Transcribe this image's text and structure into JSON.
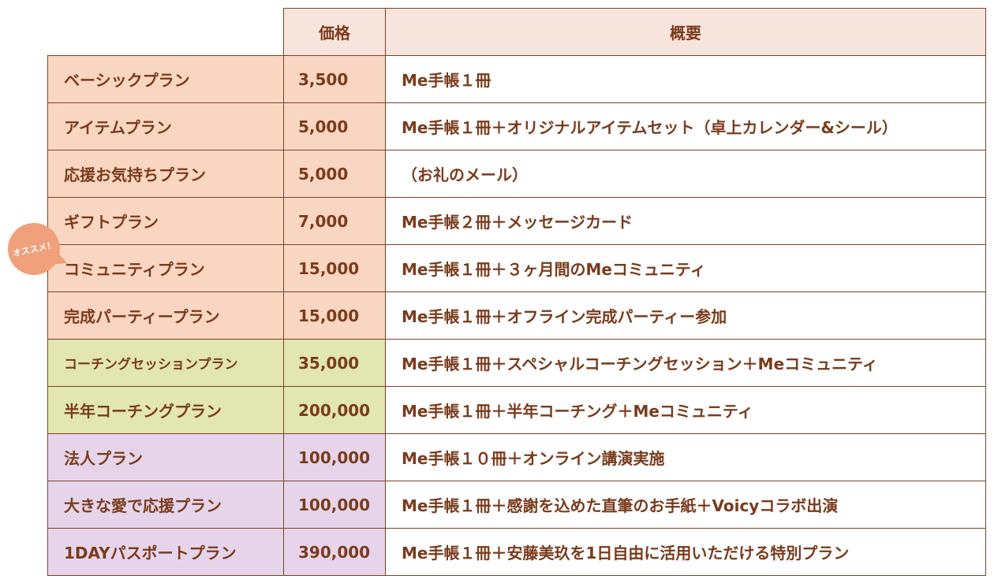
{
  "header": {
    "price": "価格",
    "summary": "概要"
  },
  "badge": "オススメ！",
  "colors": {
    "peach": "#f9d6c1",
    "green": "#e2e6b1",
    "purple": "#e6d5ea",
    "header": "#f7e4dc",
    "text": "#7a3b1c",
    "badge": "#f0a07a"
  },
  "plans": [
    {
      "name": "ベーシックプラン",
      "price": "3,500",
      "desc": "Me手帳１冊"
    },
    {
      "name": "アイテムプラン",
      "price": "5,000",
      "desc": "Me手帳１冊＋オリジナルアイテムセット（卓上カレンダー&シール）"
    },
    {
      "name": "応援お気持ちプラン",
      "price": "5,000",
      "desc": "（お礼のメール）"
    },
    {
      "name": "ギフトプラン",
      "price": "7,000",
      "desc": "Me手帳２冊＋メッセージカード"
    },
    {
      "name": "コミュニティプラン",
      "price": "15,000",
      "desc": "Me手帳１冊＋３ヶ月間のMeコミュニティ"
    },
    {
      "name": "完成パーティープラン",
      "price": "15,000",
      "desc": "Me手帳１冊＋オフライン完成パーティー参加"
    },
    {
      "name": "コーチングセッションプラン",
      "price": "35,000",
      "desc": "Me手帳１冊＋スペシャルコーチングセッション＋Meコミュニティ"
    },
    {
      "name": "半年コーチングプラン",
      "price": "200,000",
      "desc": "Me手帳１冊＋半年コーチング＋Meコミュニティ"
    },
    {
      "name": "法人プラン",
      "price": "100,000",
      "desc": "Me手帳１０冊＋オンライン講演実施"
    },
    {
      "name": "大きな愛で応援プラン",
      "price": "100,000",
      "desc": "Me手帳１冊＋感謝を込めた直筆のお手紙＋Voicyコラボ出演"
    },
    {
      "name": "1DAYパスポートプラン",
      "price": "390,000",
      "desc": "Me手帳１冊＋安藤美玖を1日自由に活用いただける特別プラン"
    }
  ]
}
